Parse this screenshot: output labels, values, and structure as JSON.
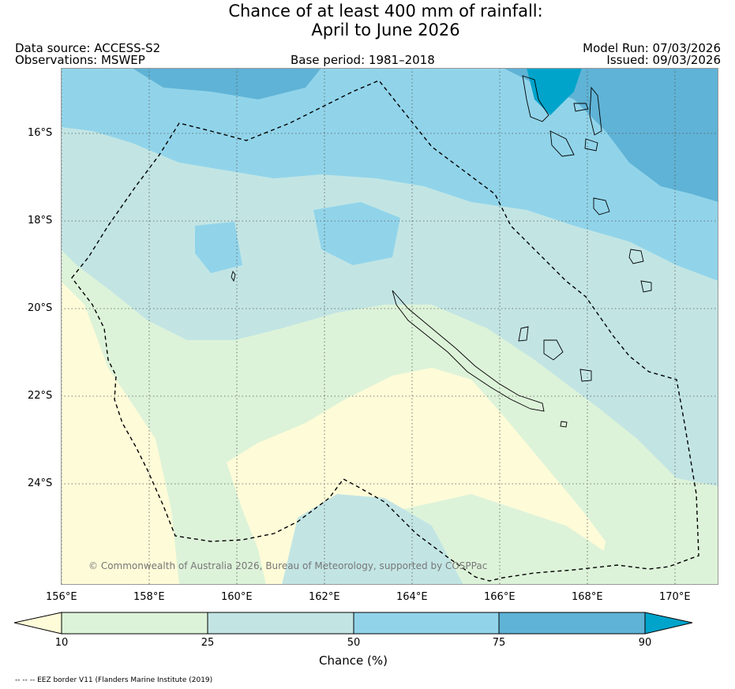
{
  "title": {
    "line1": "Chance of at least 400 mm of rainfall:",
    "line2": "April to June 2026"
  },
  "header": {
    "data_source": "Data source: ACCESS-S2",
    "observations": "Observations: MSWEP",
    "base_period": "Base period: 1981–2018",
    "model_run": "Model Run: 07/03/2026",
    "issued": "Issued: 09/03/2026"
  },
  "map": {
    "lon_range": [
      156,
      171
    ],
    "lat_range": [
      -26.5,
      -14.7
    ],
    "lat_ticks": [
      "16°S",
      "18°S",
      "20°S",
      "22°S",
      "24°S"
    ],
    "lon_ticks": [
      "156°E",
      "158°E",
      "160°E",
      "162°E",
      "164°E",
      "166°E",
      "168°E",
      "170°E"
    ],
    "copyright": "© Commonwealth of Australia 2026, Bureau of Meteorology, supported by COSPPac",
    "grid": true
  },
  "legend": {
    "title": "Chance (%)",
    "ticks": [
      "10",
      "25",
      "50",
      "75",
      "90"
    ],
    "colors": {
      "below_10": "#fefbd8",
      "c10_25": "#ddf3d9",
      "c25_50": "#c2e5e4",
      "c50_75": "#91d4ea",
      "c75_90": "#5fb3d6",
      "above_90": "#00a4cb"
    }
  },
  "footer": {
    "eez_note": "-- -- -- EEZ border V11 (Flanders Marine Institute (2019)"
  }
}
